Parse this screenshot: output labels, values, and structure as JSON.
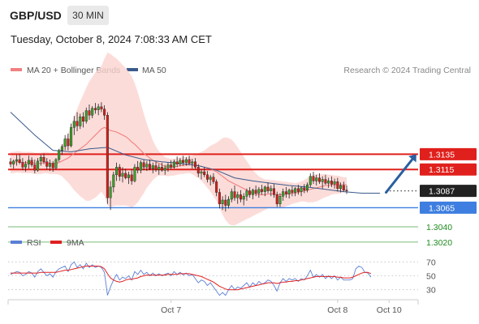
{
  "header": {
    "symbol": "GBP/USD",
    "timeframe": "30 MIN",
    "datetime": "Tuesday, October 8, 2024 7:08:33 AM CET"
  },
  "legend": {
    "ma20_label": "MA 20 + Bollinger Bands",
    "ma50_label": "MA 50",
    "ma20_color": "#f08080",
    "ma50_color": "#3a5a8c",
    "credit": "Research © 2024 Trading Central"
  },
  "rsi_legend": {
    "rsi_label": "RSI",
    "ma9_label": "9MA",
    "rsi_color": "#5b7fd4",
    "ma9_color": "#e02020"
  },
  "chart_data": {
    "type": "line",
    "subtype": "candlestick",
    "price_axis": {
      "min": 1.3005,
      "max": 1.3235
    },
    "x_labels": [
      {
        "label": "Oct 7",
        "index": 53
      },
      {
        "label": "Oct 8",
        "index": 108
      },
      {
        "label": "Oct 10",
        "index": 125
      }
    ],
    "last_index": 124,
    "levels": [
      {
        "price": 1.3135,
        "label": "1.3135",
        "kind": "resistance",
        "color": "#e0201c"
      },
      {
        "price": 1.3115,
        "label": "1.3115",
        "kind": "resistance",
        "color": "#e0201c"
      },
      {
        "price": 1.3087,
        "label": "1.3087",
        "kind": "last",
        "color": "#222222"
      },
      {
        "price": 1.3065,
        "label": "1.3065",
        "kind": "pivot",
        "color": "#3d7ee0"
      },
      {
        "price": 1.304,
        "label": "1.3040",
        "kind": "support",
        "color": "#1e8c1e"
      },
      {
        "price": 1.302,
        "label": "1.3020",
        "kind": "support",
        "color": "#1e8c1e"
      }
    ],
    "arrow": {
      "from_index": 124,
      "from_price": 1.3085,
      "to_index": 134,
      "to_price": 1.3135,
      "color": "#2a5fa0"
    },
    "candles": [
      [
        1.3125,
        1.313,
        1.3118,
        1.3122
      ],
      [
        1.3122,
        1.3128,
        1.3116,
        1.3126
      ],
      [
        1.3126,
        1.3134,
        1.312,
        1.3128
      ],
      [
        1.3128,
        1.3135,
        1.3122,
        1.3124
      ],
      [
        1.3124,
        1.313,
        1.3114,
        1.3118
      ],
      [
        1.3118,
        1.3126,
        1.3112,
        1.3122
      ],
      [
        1.3122,
        1.3133,
        1.3116,
        1.3127
      ],
      [
        1.3127,
        1.3131,
        1.3118,
        1.3121
      ],
      [
        1.3121,
        1.3128,
        1.311,
        1.3114
      ],
      [
        1.3114,
        1.313,
        1.3112,
        1.3126
      ],
      [
        1.3126,
        1.3134,
        1.312,
        1.3131
      ],
      [
        1.3131,
        1.3136,
        1.3122,
        1.3125
      ],
      [
        1.3125,
        1.313,
        1.3115,
        1.3119
      ],
      [
        1.3119,
        1.3128,
        1.3113,
        1.3123
      ],
      [
        1.3123,
        1.3126,
        1.3112,
        1.3117
      ],
      [
        1.3117,
        1.313,
        1.3115,
        1.3128
      ],
      [
        1.3128,
        1.3142,
        1.3125,
        1.314
      ],
      [
        1.314,
        1.3148,
        1.3134,
        1.3145
      ],
      [
        1.3145,
        1.316,
        1.314,
        1.3155
      ],
      [
        1.3155,
        1.3162,
        1.314,
        1.3146
      ],
      [
        1.3146,
        1.3175,
        1.3144,
        1.317
      ],
      [
        1.317,
        1.3185,
        1.316,
        1.3178
      ],
      [
        1.3178,
        1.319,
        1.3165,
        1.3172
      ],
      [
        1.3172,
        1.3188,
        1.3168,
        1.3184
      ],
      [
        1.3184,
        1.319,
        1.317,
        1.3178
      ],
      [
        1.3178,
        1.3196,
        1.3175,
        1.3192
      ],
      [
        1.3192,
        1.32,
        1.318,
        1.3186
      ],
      [
        1.3186,
        1.3198,
        1.3182,
        1.3195
      ],
      [
        1.3195,
        1.3202,
        1.3188,
        1.3193
      ],
      [
        1.3193,
        1.3201,
        1.3186,
        1.3197
      ],
      [
        1.3197,
        1.3203,
        1.319,
        1.3194
      ],
      [
        1.3194,
        1.3199,
        1.318,
        1.3186
      ],
      [
        1.3186,
        1.319,
        1.307,
        1.3078
      ],
      [
        1.3078,
        1.31,
        1.3062,
        1.3092
      ],
      [
        1.3092,
        1.3112,
        1.3085,
        1.3108
      ],
      [
        1.3108,
        1.3124,
        1.31,
        1.3118
      ],
      [
        1.3118,
        1.3122,
        1.31,
        1.3106
      ],
      [
        1.3106,
        1.3118,
        1.3098,
        1.311
      ],
      [
        1.311,
        1.3116,
        1.3102,
        1.3104
      ],
      [
        1.3104,
        1.3112,
        1.3096,
        1.3108
      ],
      [
        1.3108,
        1.3115,
        1.3095,
        1.31
      ],
      [
        1.31,
        1.3122,
        1.3098,
        1.3118
      ],
      [
        1.3118,
        1.3126,
        1.311,
        1.3114
      ],
      [
        1.3114,
        1.3127,
        1.311,
        1.3124
      ],
      [
        1.3124,
        1.3128,
        1.3114,
        1.3118
      ],
      [
        1.3118,
        1.3126,
        1.3113,
        1.3122
      ],
      [
        1.3122,
        1.3128,
        1.3114,
        1.3116
      ],
      [
        1.3116,
        1.3124,
        1.311,
        1.312
      ],
      [
        1.312,
        1.3125,
        1.3112,
        1.3115
      ],
      [
        1.3115,
        1.3122,
        1.3108,
        1.3118
      ],
      [
        1.3118,
        1.3124,
        1.3112,
        1.3114
      ],
      [
        1.3114,
        1.3121,
        1.3108,
        1.3117
      ],
      [
        1.3117,
        1.3124,
        1.3112,
        1.3121
      ],
      [
        1.3121,
        1.3127,
        1.3115,
        1.3118
      ],
      [
        1.3118,
        1.3128,
        1.3116,
        1.3125
      ],
      [
        1.3125,
        1.3132,
        1.3118,
        1.3122
      ],
      [
        1.3122,
        1.313,
        1.3119,
        1.3127
      ],
      [
        1.3127,
        1.3133,
        1.312,
        1.3124
      ],
      [
        1.3124,
        1.3131,
        1.312,
        1.3128
      ],
      [
        1.3128,
        1.3133,
        1.3121,
        1.3123
      ],
      [
        1.3123,
        1.3129,
        1.3116,
        1.3125
      ],
      [
        1.3125,
        1.313,
        1.3115,
        1.3118
      ],
      [
        1.3118,
        1.3122,
        1.3105,
        1.311
      ],
      [
        1.311,
        1.3115,
        1.3102,
        1.3112
      ],
      [
        1.3112,
        1.3118,
        1.3105,
        1.3108
      ],
      [
        1.3108,
        1.3113,
        1.3098,
        1.3102
      ],
      [
        1.3102,
        1.3108,
        1.3094,
        1.3105
      ],
      [
        1.3105,
        1.311,
        1.3096,
        1.3099
      ],
      [
        1.3099,
        1.3102,
        1.308,
        1.3085
      ],
      [
        1.3085,
        1.309,
        1.3064,
        1.307
      ],
      [
        1.307,
        1.308,
        1.3062,
        1.3075
      ],
      [
        1.3075,
        1.3082,
        1.306,
        1.3068
      ],
      [
        1.3068,
        1.308,
        1.3064,
        1.3076
      ],
      [
        1.3076,
        1.309,
        1.3072,
        1.3086
      ],
      [
        1.3086,
        1.3094,
        1.3074,
        1.3078
      ],
      [
        1.3078,
        1.3086,
        1.307,
        1.3082
      ],
      [
        1.3082,
        1.3088,
        1.3072,
        1.3076
      ],
      [
        1.3076,
        1.3084,
        1.3068,
        1.308
      ],
      [
        1.308,
        1.309,
        1.3074,
        1.3087
      ],
      [
        1.3087,
        1.3092,
        1.3078,
        1.3082
      ],
      [
        1.3082,
        1.309,
        1.3076,
        1.3088
      ],
      [
        1.3088,
        1.3094,
        1.308,
        1.3084
      ],
      [
        1.3084,
        1.3092,
        1.3078,
        1.3089
      ],
      [
        1.3089,
        1.3095,
        1.3082,
        1.3086
      ],
      [
        1.3086,
        1.3094,
        1.308,
        1.3092
      ],
      [
        1.3092,
        1.3098,
        1.3084,
        1.3087
      ],
      [
        1.3087,
        1.3094,
        1.308,
        1.309
      ],
      [
        1.309,
        1.3096,
        1.3078,
        1.3082
      ],
      [
        1.3082,
        1.3086,
        1.3066,
        1.307
      ],
      [
        1.307,
        1.3084,
        1.3066,
        1.308
      ],
      [
        1.308,
        1.309,
        1.3074,
        1.3086
      ],
      [
        1.3086,
        1.3092,
        1.3078,
        1.3083
      ],
      [
        1.3083,
        1.309,
        1.3077,
        1.3088
      ],
      [
        1.3088,
        1.3093,
        1.308,
        1.3085
      ],
      [
        1.3085,
        1.3092,
        1.308,
        1.309
      ],
      [
        1.309,
        1.3095,
        1.3082,
        1.3086
      ],
      [
        1.3086,
        1.3093,
        1.308,
        1.3091
      ],
      [
        1.3091,
        1.3096,
        1.3084,
        1.3088
      ],
      [
        1.3088,
        1.3098,
        1.3085,
        1.3095
      ],
      [
        1.3095,
        1.311,
        1.3092,
        1.3106
      ],
      [
        1.3106,
        1.3112,
        1.3096,
        1.31
      ],
      [
        1.31,
        1.3108,
        1.3094,
        1.3104
      ],
      [
        1.3104,
        1.311,
        1.3096,
        1.3099
      ],
      [
        1.3099,
        1.3106,
        1.309,
        1.3102
      ],
      [
        1.3102,
        1.3108,
        1.3095,
        1.3097
      ],
      [
        1.3097,
        1.3104,
        1.3091,
        1.31
      ],
      [
        1.31,
        1.3106,
        1.3092,
        1.3096
      ],
      [
        1.3096,
        1.3103,
        1.309,
        1.3099
      ],
      [
        1.3099,
        1.3104,
        1.3086,
        1.309
      ],
      [
        1.309,
        1.3098,
        1.3085,
        1.3094
      ],
      [
        1.3094,
        1.3099,
        1.3086,
        1.3088
      ],
      [
        1.3088,
        1.3094,
        1.3083,
        1.3087
      ]
    ],
    "ma20": [
      1.3124,
      1.3124,
      1.3125,
      1.3125,
      1.3124,
      1.3124,
      1.3124,
      1.3124,
      1.3123,
      1.3123,
      1.3123,
      1.3124,
      1.3124,
      1.3123,
      1.3123,
      1.3123,
      1.3124,
      1.3126,
      1.3128,
      1.313,
      1.3133,
      1.3136,
      1.3139,
      1.3142,
      1.3145,
      1.3148,
      1.3152,
      1.3156,
      1.316,
      1.3164,
      1.3168,
      1.317,
      1.3168,
      1.3166,
      1.3165,
      1.3164,
      1.3162,
      1.316,
      1.3158,
      1.3155,
      1.3151,
      1.3148,
      1.3144,
      1.314,
      1.3136,
      1.3133,
      1.313,
      1.3127,
      1.3125,
      1.3123,
      1.3121,
      1.3119,
      1.3118,
      1.3118,
      1.3118,
      1.3119,
      1.312,
      1.312,
      1.3121,
      1.3121,
      1.3121,
      1.312,
      1.312,
      1.3119,
      1.3118,
      1.3117,
      1.3116,
      1.3114,
      1.3112,
      1.3109,
      1.3106,
      1.3103,
      1.31,
      1.3098,
      1.3096,
      1.3094,
      1.3092,
      1.309,
      1.3088,
      1.3086,
      1.3084,
      1.3083,
      1.3082,
      1.3082,
      1.3082,
      1.3083,
      1.3083,
      1.3083,
      1.3082,
      1.3082,
      1.3082,
      1.3083,
      1.3083,
      1.3084,
      1.3084,
      1.3085,
      1.3086,
      1.3087,
      1.3088,
      1.3089,
      1.309,
      1.3091,
      1.3092,
      1.3093,
      1.3094,
      1.3094,
      1.3095,
      1.3095,
      1.3095,
      1.3095,
      1.3095,
      1.3095
    ],
    "bb_width": [
      0.0014,
      0.0014,
      0.0014,
      0.0014,
      0.0014,
      0.0014,
      0.0014,
      0.0014,
      0.0014,
      0.0014,
      0.0014,
      0.0014,
      0.0014,
      0.0014,
      0.0014,
      0.0014,
      0.0016,
      0.002,
      0.0026,
      0.0032,
      0.004,
      0.0048,
      0.0055,
      0.0062,
      0.0068,
      0.0074,
      0.0078,
      0.008,
      0.0082,
      0.0082,
      0.0082,
      0.009,
      0.01,
      0.01,
      0.0098,
      0.0096,
      0.0094,
      0.0092,
      0.009,
      0.0088,
      0.0086,
      0.008,
      0.0072,
      0.0062,
      0.0052,
      0.0042,
      0.0034,
      0.0026,
      0.002,
      0.0016,
      0.0014,
      0.0012,
      0.0012,
      0.0011,
      0.0011,
      0.0011,
      0.0011,
      0.0011,
      0.0011,
      0.0011,
      0.0012,
      0.0014,
      0.0016,
      0.0019,
      0.0022,
      0.0026,
      0.003,
      0.0034,
      0.0038,
      0.0044,
      0.005,
      0.0054,
      0.0056,
      0.0056,
      0.0054,
      0.005,
      0.0046,
      0.0042,
      0.0038,
      0.0034,
      0.003,
      0.0027,
      0.0024,
      0.0022,
      0.002,
      0.0019,
      0.0018,
      0.0018,
      0.0018,
      0.0018,
      0.0017,
      0.0016,
      0.0015,
      0.0014,
      0.0013,
      0.0013,
      0.0013,
      0.0014,
      0.0016,
      0.0017,
      0.0018,
      0.0018,
      0.0017,
      0.0016,
      0.0015,
      0.0014,
      0.0013,
      0.0012,
      0.0012,
      0.0011,
      0.001,
      0.001
    ],
    "ma50": [
      [
        0,
        1.319
      ],
      [
        8,
        1.316
      ],
      [
        14,
        1.314
      ],
      [
        20,
        1.3138
      ],
      [
        26,
        1.3142
      ],
      [
        32,
        1.3144
      ],
      [
        38,
        1.3134
      ],
      [
        44,
        1.3128
      ],
      [
        50,
        1.3125
      ],
      [
        56,
        1.3123
      ],
      [
        62,
        1.312
      ],
      [
        68,
        1.3114
      ],
      [
        74,
        1.3104
      ],
      [
        80,
        1.31
      ],
      [
        86,
        1.3097
      ],
      [
        92,
        1.3094
      ],
      [
        98,
        1.3092
      ],
      [
        104,
        1.3089
      ],
      [
        110,
        1.3086
      ],
      [
        116,
        1.3084
      ],
      [
        122,
        1.3084
      ]
    ],
    "rsi": {
      "min": 18,
      "max": 82,
      "ticks": [
        70,
        50,
        30
      ],
      "values": [
        52,
        54,
        56,
        55,
        50,
        52,
        56,
        54,
        48,
        56,
        60,
        55,
        50,
        53,
        48,
        56,
        60,
        62,
        64,
        56,
        66,
        70,
        62,
        66,
        60,
        68,
        62,
        66,
        62,
        64,
        62,
        55,
        22,
        34,
        44,
        52,
        44,
        48,
        46,
        50,
        44,
        56,
        52,
        58,
        52,
        55,
        50,
        54,
        50,
        53,
        50,
        52,
        54,
        50,
        56,
        52,
        55,
        51,
        54,
        50,
        52,
        46,
        40,
        44,
        42,
        36,
        40,
        34,
        28,
        22,
        26,
        22,
        30,
        36,
        30,
        34,
        32,
        36,
        40,
        34,
        40,
        36,
        42,
        38,
        40,
        44,
        42,
        36,
        28,
        40,
        46,
        42,
        46,
        44,
        46,
        42,
        46,
        44,
        50,
        58,
        48,
        52,
        48,
        52,
        46,
        50,
        46,
        50,
        44,
        48,
        44,
        44,
        44,
        46,
        60,
        64,
        62,
        55,
        54,
        48
      ],
      "ma9": [
        54,
        54,
        54,
        54,
        54,
        54,
        54,
        54,
        54,
        54,
        55,
        55,
        55,
        55,
        55,
        55,
        56,
        57,
        58,
        58,
        59,
        60,
        61,
        62,
        63,
        64,
        64,
        64,
        64,
        64,
        63,
        60,
        53,
        47,
        44,
        42,
        41,
        42,
        44,
        45,
        45,
        46,
        47,
        49,
        50,
        51,
        51,
        51,
        51,
        51,
        51,
        51,
        52,
        52,
        52,
        52,
        53,
        53,
        53,
        53,
        52,
        51,
        50,
        49,
        47,
        45,
        43,
        41,
        38,
        35,
        33,
        31,
        30,
        30,
        30,
        30,
        31,
        32,
        33,
        34,
        35,
        36,
        37,
        38,
        39,
        40,
        40,
        40,
        39,
        40,
        41,
        41,
        42,
        42,
        43,
        43,
        44,
        45,
        46,
        47,
        48,
        49,
        49,
        49,
        49,
        49,
        49,
        49,
        48,
        48,
        47,
        47,
        47,
        48,
        50,
        52,
        54,
        55,
        55,
        53
      ]
    }
  }
}
